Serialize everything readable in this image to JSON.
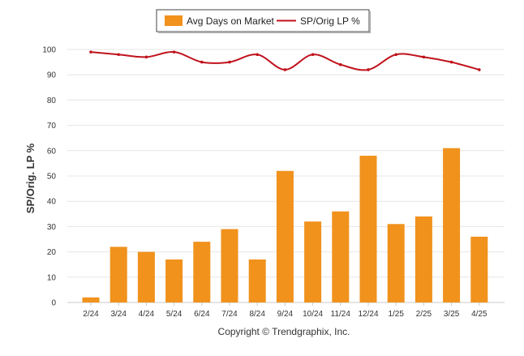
{
  "chart_data": {
    "type": "bar",
    "categories": [
      "2/24",
      "3/24",
      "4/24",
      "5/24",
      "6/24",
      "7/24",
      "8/24",
      "9/24",
      "10/24",
      "11/24",
      "12/24",
      "1/25",
      "2/25",
      "3/25",
      "4/25"
    ],
    "series": [
      {
        "name": "Avg Days on Market",
        "type": "bar",
        "color": "#f0921c",
        "values": [
          2,
          22,
          20,
          17,
          24,
          29,
          17,
          52,
          32,
          36,
          58,
          31,
          34,
          61,
          26
        ]
      },
      {
        "name": "SP/Orig LP %",
        "type": "line",
        "color": "#c0121c",
        "values": [
          99,
          98,
          97,
          99,
          95,
          95,
          98,
          92,
          98,
          94,
          92,
          98,
          97,
          95,
          92
        ]
      }
    ],
    "ylabel": "SP/Orig. LP %",
    "ylim": [
      0,
      100
    ],
    "yticks": [
      0,
      10,
      20,
      30,
      40,
      50,
      60,
      70,
      80,
      90,
      100
    ],
    "grid": true,
    "legend_position": "top-center"
  },
  "footer": {
    "copyright": "Copyright © Trendgraphix, Inc."
  }
}
